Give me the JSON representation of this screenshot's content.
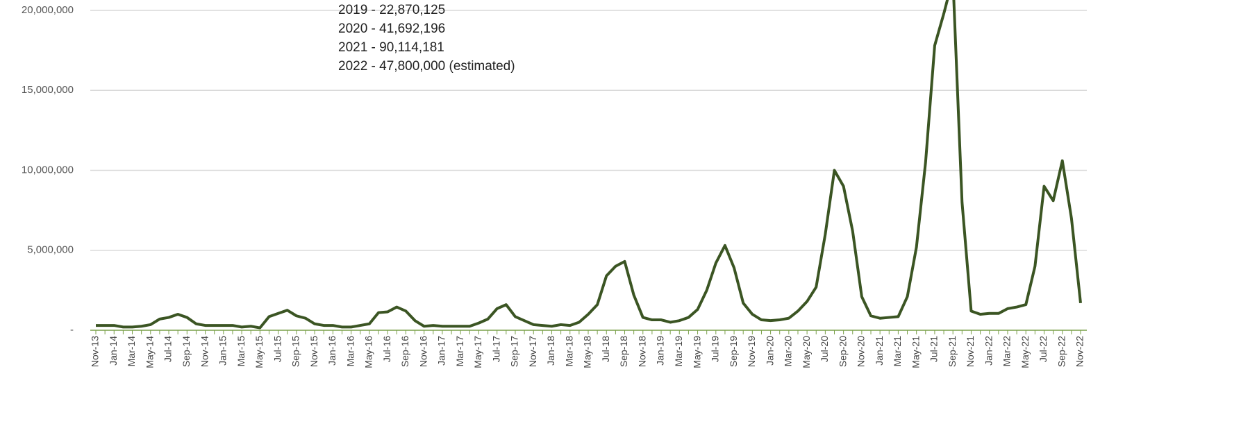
{
  "chart_data": {
    "type": "line",
    "annotations": [
      "2019 - 22,870,125",
      "2020 - 41,692,196",
      "2021 - 90,114,181",
      "2022 - 47,800,000 (estimated)"
    ],
    "categories": [
      "Nov-13",
      null,
      "Jan-14",
      null,
      "Mar-14",
      null,
      "May-14",
      null,
      "Jul-14",
      null,
      "Sep-14",
      null,
      "Nov-14",
      null,
      "Jan-15",
      null,
      "Mar-15",
      null,
      "May-15",
      null,
      "Jul-15",
      null,
      "Sep-15",
      null,
      "Nov-15",
      null,
      "Jan-16",
      null,
      "Mar-16",
      null,
      "May-16",
      null,
      "Jul-16",
      null,
      "Sep-16",
      null,
      "Nov-16",
      null,
      "Jan-17",
      null,
      "Mar-17",
      null,
      "May-17",
      null,
      "Jul-17",
      null,
      "Sep-17",
      null,
      "Nov-17",
      null,
      "Jan-18",
      null,
      "Mar-18",
      null,
      "May-18",
      null,
      "Jul-18",
      null,
      "Sep-18",
      null,
      "Nov-18",
      null,
      "Jan-19",
      null,
      "Mar-19",
      null,
      "May-19",
      null,
      "Jul-19",
      null,
      "Sep-19",
      null,
      "Nov-19",
      null,
      "Jan-20",
      null,
      "Mar-20",
      null,
      "May-20",
      null,
      "Jul-20",
      null,
      "Sep-20",
      null,
      "Nov-20",
      null,
      "Jan-21",
      null,
      "Mar-21",
      null,
      "May-21",
      null,
      "Jul-21",
      null,
      "Sep-21",
      null,
      "Nov-21",
      null,
      "Jan-22",
      null,
      "Mar-22",
      null,
      "May-22",
      null,
      "Jul-22",
      null,
      "Sep-22",
      null,
      "Nov-22"
    ],
    "series": [
      {
        "color": "#3b5523",
        "values": [
          300000,
          300000,
          300000,
          200000,
          200000,
          250000,
          350000,
          700000,
          800000,
          1000000,
          800000,
          400000,
          300000,
          300000,
          300000,
          300000,
          200000,
          250000,
          150000,
          850000,
          1050000,
          1250000,
          900000,
          750000,
          400000,
          300000,
          300000,
          200000,
          200000,
          300000,
          400000,
          1100000,
          1150000,
          1450000,
          1200000,
          600000,
          250000,
          300000,
          250000,
          250000,
          250000,
          250000,
          450000,
          700000,
          1350000,
          1600000,
          850000,
          600000,
          350000,
          300000,
          250000,
          350000,
          300000,
          500000,
          1000000,
          1600000,
          3400000,
          4000000,
          4300000,
          2200000,
          800000,
          650000,
          650000,
          500000,
          600000,
          800000,
          1300000,
          2500000,
          4200000,
          5300000,
          3900000,
          1700000,
          1000000,
          650000,
          600000,
          650000,
          750000,
          1200000,
          1800000,
          2700000,
          6000000,
          10000000,
          9000000,
          6200000,
          2100000,
          900000,
          750000,
          800000,
          850000,
          2100000,
          5200000,
          10500000,
          17800000,
          19800000,
          22000000,
          8000000,
          1200000,
          1000000,
          1050000,
          1050000,
          1350000,
          1450000,
          1600000,
          4000000,
          9000000,
          8100000,
          10600000,
          7000000,
          1700000
        ]
      }
    ],
    "ylim": [
      0,
      20650000
    ],
    "yticks": [
      {
        "value": 0,
        "label": "-"
      },
      {
        "value": 5000000,
        "label": "5,000,000"
      },
      {
        "value": 10000000,
        "label": "10,000,000"
      },
      {
        "value": 15000000,
        "label": "15,000,000"
      },
      {
        "value": 20000000,
        "label": "20,000,000"
      }
    ],
    "grid": true
  }
}
